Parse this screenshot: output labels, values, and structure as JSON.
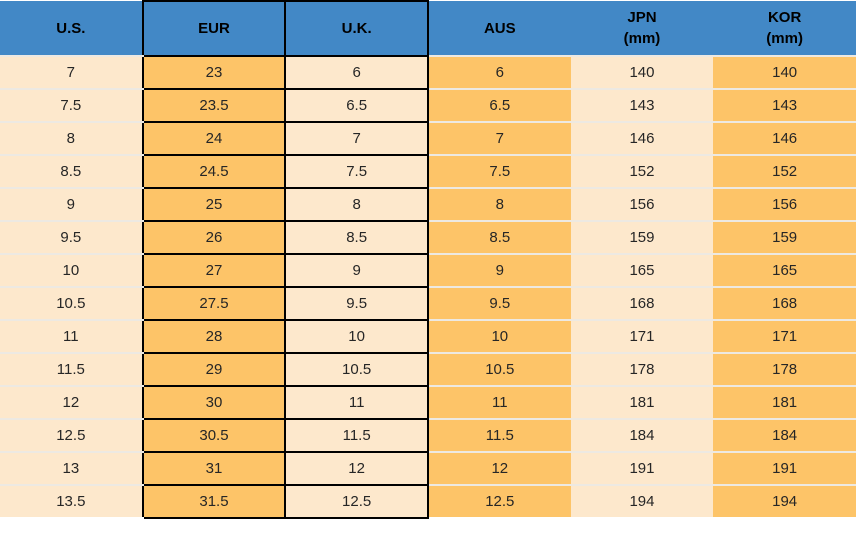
{
  "chart_data": {
    "type": "table",
    "columns": [
      {
        "key": "us",
        "label": "U.S.",
        "sub": ""
      },
      {
        "key": "eur",
        "label": "EUR",
        "sub": ""
      },
      {
        "key": "uk",
        "label": "U.K.",
        "sub": ""
      },
      {
        "key": "aus",
        "label": "AUS",
        "sub": ""
      },
      {
        "key": "jpn",
        "label": "JPN",
        "sub": "(mm)"
      },
      {
        "key": "kor",
        "label": "KOR",
        "sub": "(mm)"
      }
    ],
    "rows": [
      [
        "7",
        "23",
        "6",
        "6",
        "140",
        "140"
      ],
      [
        "7.5",
        "23.5",
        "6.5",
        "6.5",
        "143",
        "143"
      ],
      [
        "8",
        "24",
        "7",
        "7",
        "146",
        "146"
      ],
      [
        "8.5",
        "24.5",
        "7.5",
        "7.5",
        "152",
        "152"
      ],
      [
        "9",
        "25",
        "8",
        "8",
        "156",
        "156"
      ],
      [
        "9.5",
        "26",
        "8.5",
        "8.5",
        "159",
        "159"
      ],
      [
        "10",
        "27",
        "9",
        "9",
        "165",
        "165"
      ],
      [
        "10.5",
        "27.5",
        "9.5",
        "9.5",
        "168",
        "168"
      ],
      [
        "11",
        "28",
        "10",
        "10",
        "171",
        "171"
      ],
      [
        "11.5",
        "29",
        "10.5",
        "10.5",
        "178",
        "178"
      ],
      [
        "12",
        "30",
        "11",
        "11",
        "181",
        "181"
      ],
      [
        "12.5",
        "30.5",
        "11.5",
        "11.5",
        "184",
        "184"
      ],
      [
        "13",
        "31",
        "12",
        "12",
        "191",
        "191"
      ],
      [
        "13.5",
        "31.5",
        "12.5",
        "12.5",
        "194",
        "194"
      ]
    ]
  },
  "colors": {
    "header_bg": "#4288C6",
    "orange_cell": "#FDC468",
    "cream_cell": "#FDE8CC",
    "black_border": "#000000",
    "light_separator": "#EDE9E2",
    "header_text": "#000000",
    "cell_text": "#262626"
  }
}
